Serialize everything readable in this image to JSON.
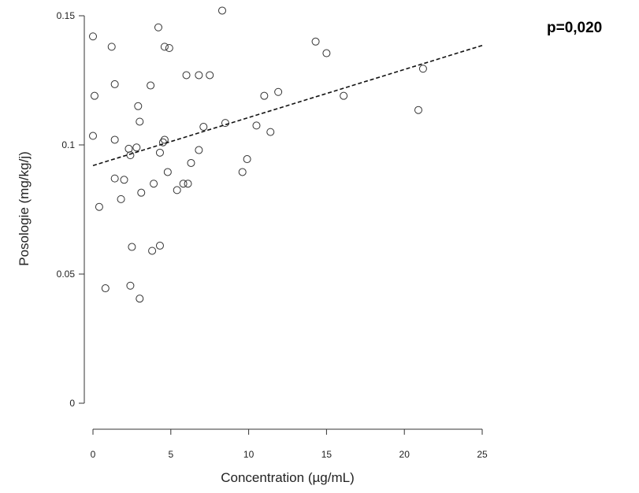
{
  "chart_data": {
    "type": "scatter",
    "title": "",
    "xlabel": "Concentration (µg/mL)",
    "ylabel": "Posologie (mg/kg/j)",
    "xlim": [
      0,
      25
    ],
    "ylim": [
      0,
      0.15
    ],
    "x_ticks": [
      0,
      5,
      10,
      15,
      20,
      25
    ],
    "x_tick_labels": [
      "0",
      "5",
      "10",
      "15",
      "20",
      "25"
    ],
    "y_ticks": [
      0,
      0.05,
      0.1,
      0.15
    ],
    "y_tick_labels": [
      "0",
      "0.05",
      "0.1",
      "0.15"
    ],
    "grid": false,
    "annotation": "p=0,020",
    "trendline": {
      "style": "dashed",
      "x": [
        0,
        25
      ],
      "y": [
        0.092,
        0.1385
      ]
    },
    "points": [
      {
        "x": 0.0,
        "y": 0.142
      },
      {
        "x": 0.1,
        "y": 0.119
      },
      {
        "x": 0.0,
        "y": 0.1035
      },
      {
        "x": 0.4,
        "y": 0.076
      },
      {
        "x": 0.8,
        "y": 0.0445
      },
      {
        "x": 1.2,
        "y": 0.138
      },
      {
        "x": 1.4,
        "y": 0.1235
      },
      {
        "x": 1.4,
        "y": 0.102
      },
      {
        "x": 1.4,
        "y": 0.087
      },
      {
        "x": 1.8,
        "y": 0.079
      },
      {
        "x": 2.0,
        "y": 0.0865
      },
      {
        "x": 2.3,
        "y": 0.0985
      },
      {
        "x": 2.4,
        "y": 0.096
      },
      {
        "x": 2.5,
        "y": 0.0605
      },
      {
        "x": 2.4,
        "y": 0.0455
      },
      {
        "x": 2.8,
        "y": 0.099
      },
      {
        "x": 2.9,
        "y": 0.115
      },
      {
        "x": 3.0,
        "y": 0.109
      },
      {
        "x": 3.1,
        "y": 0.0815
      },
      {
        "x": 3.0,
        "y": 0.0405
      },
      {
        "x": 3.7,
        "y": 0.123
      },
      {
        "x": 3.8,
        "y": 0.059
      },
      {
        "x": 3.9,
        "y": 0.085
      },
      {
        "x": 4.2,
        "y": 0.1455
      },
      {
        "x": 4.3,
        "y": 0.097
      },
      {
        "x": 4.3,
        "y": 0.061
      },
      {
        "x": 4.5,
        "y": 0.101
      },
      {
        "x": 4.6,
        "y": 0.102
      },
      {
        "x": 4.6,
        "y": 0.138
      },
      {
        "x": 4.8,
        "y": 0.0895
      },
      {
        "x": 4.9,
        "y": 0.1375
      },
      {
        "x": 5.4,
        "y": 0.0825
      },
      {
        "x": 5.8,
        "y": 0.085
      },
      {
        "x": 6.0,
        "y": 0.127
      },
      {
        "x": 6.1,
        "y": 0.085
      },
      {
        "x": 6.3,
        "y": 0.093
      },
      {
        "x": 6.8,
        "y": 0.127
      },
      {
        "x": 6.8,
        "y": 0.098
      },
      {
        "x": 7.1,
        "y": 0.107
      },
      {
        "x": 7.5,
        "y": 0.127
      },
      {
        "x": 8.3,
        "y": 0.152
      },
      {
        "x": 8.5,
        "y": 0.1085
      },
      {
        "x": 9.6,
        "y": 0.0895
      },
      {
        "x": 9.9,
        "y": 0.0945
      },
      {
        "x": 10.5,
        "y": 0.1075
      },
      {
        "x": 11.0,
        "y": 0.119
      },
      {
        "x": 11.4,
        "y": 0.105
      },
      {
        "x": 11.9,
        "y": 0.1205
      },
      {
        "x": 14.3,
        "y": 0.14
      },
      {
        "x": 15.0,
        "y": 0.1355
      },
      {
        "x": 16.1,
        "y": 0.119
      },
      {
        "x": 20.9,
        "y": 0.1135
      },
      {
        "x": 21.2,
        "y": 0.1295
      }
    ]
  }
}
